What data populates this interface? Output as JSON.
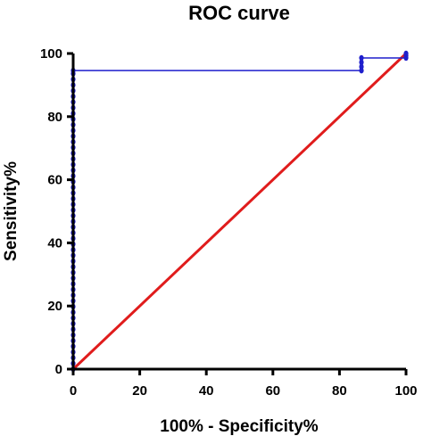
{
  "chart_data": {
    "type": "line",
    "title": "ROC curve",
    "xlabel": "100% - Specificity%",
    "ylabel": "Sensitivity%",
    "xlim": [
      0,
      100
    ],
    "ylim": [
      0,
      100
    ],
    "xticks": [
      0,
      20,
      40,
      60,
      80,
      100
    ],
    "yticks": [
      0,
      20,
      40,
      60,
      80,
      100
    ],
    "xtick_labels": [
      "0",
      "20",
      "40",
      "60",
      "80",
      "100"
    ],
    "ytick_labels": [
      "0",
      "20",
      "40",
      "60",
      "80",
      "100"
    ],
    "grid": false,
    "legend": "none",
    "series": [
      {
        "color": "#1f1fcc",
        "marker": "circle",
        "points": [
          [
            0,
            0
          ],
          [
            0,
            1.8
          ],
          [
            0,
            3.6
          ],
          [
            0,
            5.4
          ],
          [
            0,
            7.2
          ],
          [
            0,
            9.0
          ],
          [
            0,
            10.8
          ],
          [
            0,
            12.6
          ],
          [
            0,
            14.4
          ],
          [
            0,
            16.2
          ],
          [
            0,
            18.0
          ],
          [
            0,
            19.8
          ],
          [
            0,
            21.6
          ],
          [
            0,
            23.4
          ],
          [
            0,
            25.2
          ],
          [
            0,
            27.0
          ],
          [
            0,
            28.8
          ],
          [
            0,
            30.6
          ],
          [
            0,
            32.4
          ],
          [
            0,
            34.2
          ],
          [
            0,
            36.0
          ],
          [
            0,
            37.8
          ],
          [
            0,
            39.6
          ],
          [
            0,
            41.4
          ],
          [
            0,
            43.2
          ],
          [
            0,
            45.0
          ],
          [
            0,
            46.8
          ],
          [
            0,
            48.6
          ],
          [
            0,
            50.4
          ],
          [
            0,
            52.2
          ],
          [
            0,
            54.0
          ],
          [
            0,
            55.8
          ],
          [
            0,
            57.6
          ],
          [
            0,
            59.4
          ],
          [
            0,
            61.2
          ],
          [
            0,
            63.0
          ],
          [
            0,
            64.8
          ],
          [
            0,
            66.6
          ],
          [
            0,
            68.4
          ],
          [
            0,
            70.2
          ],
          [
            0,
            72.0
          ],
          [
            0,
            73.8
          ],
          [
            0,
            75.6
          ],
          [
            0,
            77.4
          ],
          [
            0,
            79.2
          ],
          [
            0,
            81.0
          ],
          [
            0,
            82.8
          ],
          [
            0,
            84.6
          ],
          [
            0,
            86.4
          ],
          [
            0,
            88.2
          ],
          [
            0,
            90.0
          ],
          [
            0,
            91.8
          ],
          [
            0,
            93.6
          ],
          [
            0,
            94.6
          ],
          [
            86.6,
            94.6
          ],
          [
            86.6,
            95.8
          ],
          [
            86.6,
            97.2
          ],
          [
            86.6,
            98.6
          ],
          [
            100,
            98.6
          ],
          [
            100,
            99.3
          ],
          [
            100,
            100
          ]
        ]
      },
      {
        "color": "#e01c1c",
        "marker": "none",
        "points": [
          [
            0,
            0
          ],
          [
            100,
            100
          ]
        ]
      }
    ]
  }
}
